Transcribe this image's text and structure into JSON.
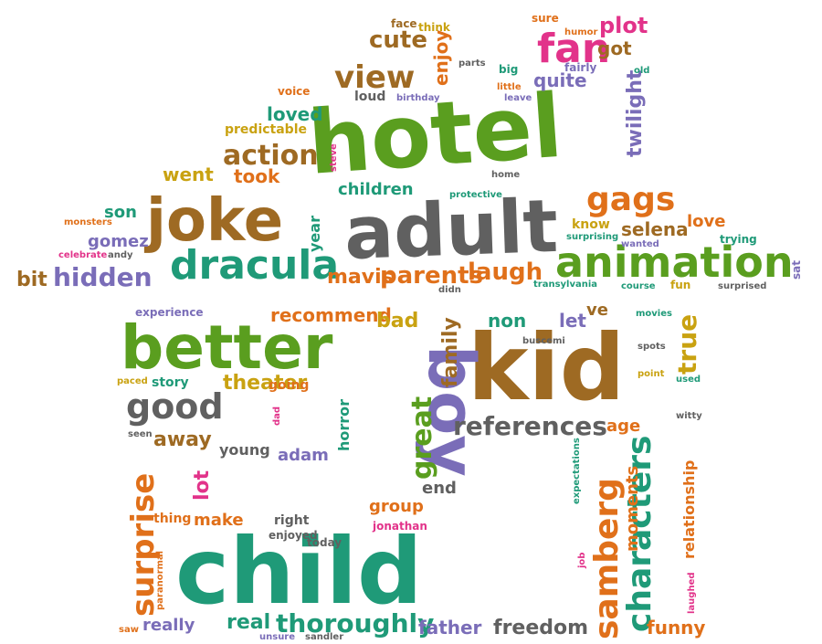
{
  "palette": {
    "green": "#5a9e1f",
    "teal": "#1f9a78",
    "orange": "#e0701a",
    "gold": "#c9a211",
    "gray": "#606060",
    "brown": "#9e6a23",
    "purple": "#7a6db8",
    "pink": "#e2338a"
  },
  "words": [
    {
      "text": "hotel",
      "color": "green"
    },
    {
      "text": "adult",
      "color": "gray"
    },
    {
      "text": "child",
      "color": "teal"
    },
    {
      "text": "kid",
      "color": "brown"
    },
    {
      "text": "better",
      "color": "green"
    },
    {
      "text": "boy",
      "color": "purple"
    },
    {
      "text": "joke",
      "color": "brown"
    },
    {
      "text": "animation",
      "color": "green"
    },
    {
      "text": "dracula",
      "color": "teal"
    },
    {
      "text": "characters",
      "color": "teal"
    },
    {
      "text": "samberg",
      "color": "orange"
    },
    {
      "text": "surprise",
      "color": "orange"
    },
    {
      "text": "good",
      "color": "gray"
    },
    {
      "text": "references",
      "color": "gray"
    },
    {
      "text": "thoroughly",
      "color": "teal"
    },
    {
      "text": "gags",
      "color": "orange"
    },
    {
      "text": "fan",
      "color": "pink"
    },
    {
      "text": "view",
      "color": "brown"
    },
    {
      "text": "action",
      "color": "brown"
    },
    {
      "text": "great",
      "color": "green"
    },
    {
      "text": "true",
      "color": "gold"
    },
    {
      "text": "hidden",
      "color": "purple"
    },
    {
      "text": "parents",
      "color": "orange"
    },
    {
      "text": "laugh",
      "color": "orange"
    },
    {
      "text": "recommend",
      "color": "orange"
    },
    {
      "text": "freedom",
      "color": "gray"
    },
    {
      "text": "father",
      "color": "purple"
    },
    {
      "text": "theater",
      "color": "gold"
    },
    {
      "text": "real",
      "color": "teal"
    },
    {
      "text": "away",
      "color": "brown"
    },
    {
      "text": "funny",
      "color": "orange"
    },
    {
      "text": "bad",
      "color": "gold"
    },
    {
      "text": "cute",
      "color": "brown"
    },
    {
      "text": "plot",
      "color": "pink"
    },
    {
      "text": "twilight",
      "color": "purple"
    },
    {
      "text": "moments",
      "color": "orange"
    },
    {
      "text": "relationship",
      "color": "orange"
    },
    {
      "text": "family",
      "color": "brown"
    },
    {
      "text": "mavis",
      "color": "orange"
    },
    {
      "text": "loved",
      "color": "teal"
    },
    {
      "text": "selena",
      "color": "brown"
    },
    {
      "text": "children",
      "color": "teal"
    },
    {
      "text": "took",
      "color": "orange"
    },
    {
      "text": "went",
      "color": "gold"
    },
    {
      "text": "quite",
      "color": "purple"
    },
    {
      "text": "got",
      "color": "brown"
    },
    {
      "text": "enjoy",
      "color": "orange"
    },
    {
      "text": "love",
      "color": "orange"
    },
    {
      "text": "end",
      "color": "gray"
    },
    {
      "text": "group",
      "color": "orange"
    },
    {
      "text": "make",
      "color": "orange"
    },
    {
      "text": "lot",
      "color": "pink"
    },
    {
      "text": "young",
      "color": "gray"
    },
    {
      "text": "adam",
      "color": "purple"
    },
    {
      "text": "age",
      "color": "orange"
    },
    {
      "text": "non",
      "color": "teal"
    },
    {
      "text": "let",
      "color": "purple"
    },
    {
      "text": "ve",
      "color": "brown"
    },
    {
      "text": "gomez",
      "color": "purple"
    },
    {
      "text": "son",
      "color": "teal"
    },
    {
      "text": "bit",
      "color": "brown"
    },
    {
      "text": "horror",
      "color": "teal"
    },
    {
      "text": "story",
      "color": "teal"
    },
    {
      "text": "really",
      "color": "purple"
    },
    {
      "text": "right",
      "color": "gray"
    },
    {
      "text": "year",
      "color": "teal"
    },
    {
      "text": "predictable",
      "color": "gold"
    },
    {
      "text": "experience",
      "color": "purple"
    },
    {
      "text": "movies",
      "color": "teal"
    },
    {
      "text": "thing",
      "color": "orange"
    },
    {
      "text": "enjoyed",
      "color": "gray"
    },
    {
      "text": "today",
      "color": "gray"
    },
    {
      "text": "going",
      "color": "orange"
    },
    {
      "text": "spots",
      "color": "gray"
    },
    {
      "text": "point",
      "color": "gold"
    },
    {
      "text": "used",
      "color": "teal"
    },
    {
      "text": "witty",
      "color": "gray"
    },
    {
      "text": "know",
      "color": "gold"
    },
    {
      "text": "wanted",
      "color": "purple"
    },
    {
      "text": "trying",
      "color": "teal"
    },
    {
      "text": "surprising",
      "color": "teal"
    },
    {
      "text": "transylvania",
      "color": "teal"
    },
    {
      "text": "course",
      "color": "teal"
    },
    {
      "text": "fun",
      "color": "gold"
    },
    {
      "text": "surprised",
      "color": "gray"
    },
    {
      "text": "sat",
      "color": "purple"
    },
    {
      "text": "expectations",
      "color": "teal"
    },
    {
      "text": "job",
      "color": "pink"
    },
    {
      "text": "laughed",
      "color": "pink"
    },
    {
      "text": "buscemi",
      "color": "gray"
    },
    {
      "text": "seen",
      "color": "gray"
    },
    {
      "text": "paced",
      "color": "gold"
    },
    {
      "text": "dad",
      "color": "pink"
    },
    {
      "text": "saw",
      "color": "orange"
    },
    {
      "text": "paranormal",
      "color": "orange"
    },
    {
      "text": "jonathan",
      "color": "pink"
    },
    {
      "text": "unsure",
      "color": "purple"
    },
    {
      "text": "sandler",
      "color": "gray"
    },
    {
      "text": "voice",
      "color": "orange"
    },
    {
      "text": "loud",
      "color": "gray"
    },
    {
      "text": "steve",
      "color": "pink"
    },
    {
      "text": "face",
      "color": "brown"
    },
    {
      "text": "think",
      "color": "gold"
    },
    {
      "text": "sure",
      "color": "orange"
    },
    {
      "text": "humor",
      "color": "orange"
    },
    {
      "text": "fairly",
      "color": "purple"
    },
    {
      "text": "old",
      "color": "teal"
    },
    {
      "text": "parts",
      "color": "gray"
    },
    {
      "text": "big",
      "color": "teal"
    },
    {
      "text": "little",
      "color": "orange"
    },
    {
      "text": "leave",
      "color": "purple"
    },
    {
      "text": "birthday",
      "color": "purple"
    },
    {
      "text": "home",
      "color": "gray"
    },
    {
      "text": "protective",
      "color": "teal"
    },
    {
      "text": "monsters",
      "color": "orange"
    },
    {
      "text": "celebrate",
      "color": "pink"
    },
    {
      "text": "andy",
      "color": "gray"
    },
    {
      "text": "didn",
      "color": "gray"
    }
  ]
}
